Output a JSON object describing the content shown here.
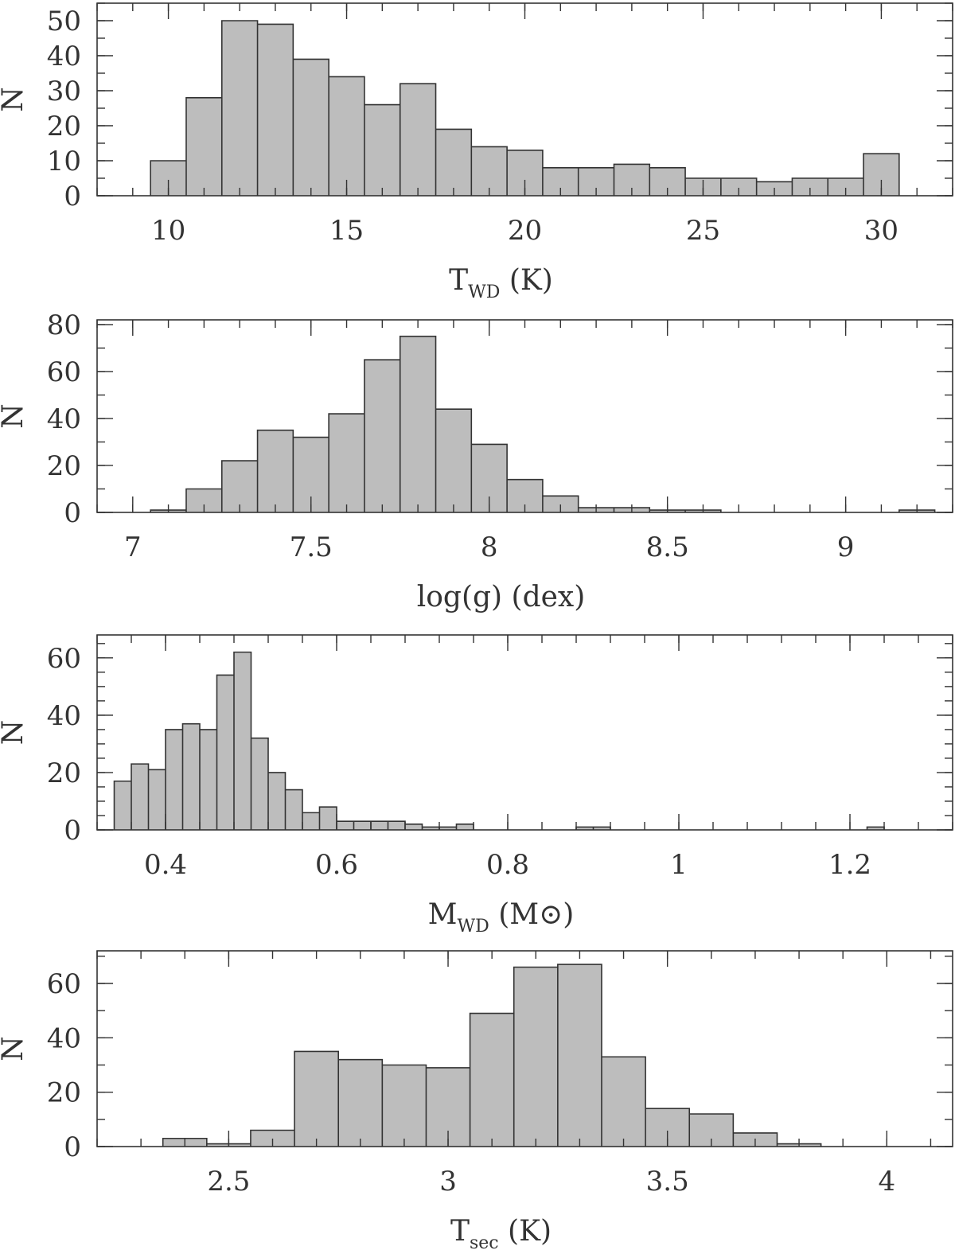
{
  "chart_data": [
    {
      "type": "bar",
      "panel": "teff-wd",
      "xlabel": "T",
      "xlabel_sub": "WD",
      "xlabel_unit": " (K)",
      "ylabel": "N",
      "xlim": [
        8,
        32
      ],
      "ylim": [
        0,
        55
      ],
      "bin_width": 1,
      "x_ticks": [
        10,
        15,
        20,
        25,
        30
      ],
      "y_ticks": [
        0,
        10,
        20,
        30,
        40,
        50
      ],
      "x_minor": 1,
      "y_minor": 5,
      "bins": [
        {
          "x": 10,
          "n": 10
        },
        {
          "x": 11,
          "n": 28
        },
        {
          "x": 12,
          "n": 50
        },
        {
          "x": 13,
          "n": 49
        },
        {
          "x": 14,
          "n": 39
        },
        {
          "x": 15,
          "n": 34
        },
        {
          "x": 16,
          "n": 26
        },
        {
          "x": 17,
          "n": 32
        },
        {
          "x": 18,
          "n": 19
        },
        {
          "x": 19,
          "n": 14
        },
        {
          "x": 20,
          "n": 13
        },
        {
          "x": 21,
          "n": 8
        },
        {
          "x": 22,
          "n": 8
        },
        {
          "x": 23,
          "n": 9
        },
        {
          "x": 24,
          "n": 8
        },
        {
          "x": 25,
          "n": 5
        },
        {
          "x": 26,
          "n": 5
        },
        {
          "x": 27,
          "n": 4
        },
        {
          "x": 28,
          "n": 5
        },
        {
          "x": 29,
          "n": 5
        },
        {
          "x": 30,
          "n": 12
        }
      ]
    },
    {
      "type": "bar",
      "panel": "logg",
      "xlabel": "log(g) (dex)",
      "xlabel_sub": "",
      "xlabel_unit": "",
      "ylabel": "N",
      "xlim": [
        6.9,
        9.3
      ],
      "ylim": [
        0,
        82
      ],
      "bin_width": 0.1,
      "x_ticks": [
        7,
        7.5,
        8,
        8.5,
        9
      ],
      "y_ticks": [
        0,
        20,
        40,
        60,
        80
      ],
      "x_minor": 0.1,
      "y_minor": 10,
      "bins": [
        {
          "x": 7.1,
          "n": 1
        },
        {
          "x": 7.2,
          "n": 10
        },
        {
          "x": 7.3,
          "n": 22
        },
        {
          "x": 7.4,
          "n": 35
        },
        {
          "x": 7.5,
          "n": 32
        },
        {
          "x": 7.6,
          "n": 42
        },
        {
          "x": 7.7,
          "n": 65
        },
        {
          "x": 7.8,
          "n": 75
        },
        {
          "x": 7.9,
          "n": 44
        },
        {
          "x": 8.0,
          "n": 29
        },
        {
          "x": 8.1,
          "n": 14
        },
        {
          "x": 8.2,
          "n": 7
        },
        {
          "x": 8.3,
          "n": 2
        },
        {
          "x": 8.4,
          "n": 2
        },
        {
          "x": 8.5,
          "n": 1
        },
        {
          "x": 8.6,
          "n": 1
        },
        {
          "x": 9.2,
          "n": 1
        }
      ]
    },
    {
      "type": "bar",
      "panel": "mass-wd",
      "xlabel": "M",
      "xlabel_sub": "WD",
      "xlabel_unit": " (M⊙)",
      "ylabel": "N",
      "xlim": [
        0.32,
        1.32
      ],
      "ylim": [
        0,
        68
      ],
      "bin_width": 0.02,
      "x_ticks": [
        0.4,
        0.6,
        0.8,
        1,
        1.2
      ],
      "y_ticks": [
        0,
        20,
        40,
        60
      ],
      "x_minor": 0.04,
      "y_minor": 5,
      "bins": [
        {
          "x": 0.35,
          "n": 17
        },
        {
          "x": 0.37,
          "n": 23
        },
        {
          "x": 0.39,
          "n": 21
        },
        {
          "x": 0.41,
          "n": 35
        },
        {
          "x": 0.43,
          "n": 37
        },
        {
          "x": 0.45,
          "n": 35
        },
        {
          "x": 0.47,
          "n": 54
        },
        {
          "x": 0.49,
          "n": 62
        },
        {
          "x": 0.51,
          "n": 32
        },
        {
          "x": 0.53,
          "n": 20
        },
        {
          "x": 0.55,
          "n": 14
        },
        {
          "x": 0.57,
          "n": 6
        },
        {
          "x": 0.59,
          "n": 8
        },
        {
          "x": 0.61,
          "n": 3
        },
        {
          "x": 0.63,
          "n": 3
        },
        {
          "x": 0.65,
          "n": 3
        },
        {
          "x": 0.67,
          "n": 3
        },
        {
          "x": 0.69,
          "n": 2
        },
        {
          "x": 0.71,
          "n": 1
        },
        {
          "x": 0.73,
          "n": 1
        },
        {
          "x": 0.75,
          "n": 2
        },
        {
          "x": 0.89,
          "n": 1
        },
        {
          "x": 0.91,
          "n": 1
        },
        {
          "x": 1.23,
          "n": 1
        }
      ]
    },
    {
      "type": "bar",
      "panel": "teff-sec",
      "xlabel": "T",
      "xlabel_sub": "sec",
      "xlabel_unit": " (K)",
      "ylabel": "N",
      "xlim": [
        2.2,
        4.15
      ],
      "ylim": [
        0,
        72
      ],
      "bin_width": 0.1,
      "x_ticks": [
        2.5,
        3,
        3.5,
        4
      ],
      "y_ticks": [
        0,
        20,
        40,
        60
      ],
      "x_minor": 0.1,
      "y_minor": 10,
      "bins": [
        {
          "x": 2.4,
          "n": 3
        },
        {
          "x": 2.5,
          "n": 1
        },
        {
          "x": 2.6,
          "n": 6
        },
        {
          "x": 2.7,
          "n": 35
        },
        {
          "x": 2.8,
          "n": 32
        },
        {
          "x": 2.9,
          "n": 30
        },
        {
          "x": 3.0,
          "n": 29
        },
        {
          "x": 3.1,
          "n": 49
        },
        {
          "x": 3.2,
          "n": 66
        },
        {
          "x": 3.3,
          "n": 67
        },
        {
          "x": 3.4,
          "n": 33
        },
        {
          "x": 3.5,
          "n": 14
        },
        {
          "x": 3.6,
          "n": 12
        },
        {
          "x": 3.7,
          "n": 5
        },
        {
          "x": 3.8,
          "n": 1
        }
      ]
    }
  ]
}
